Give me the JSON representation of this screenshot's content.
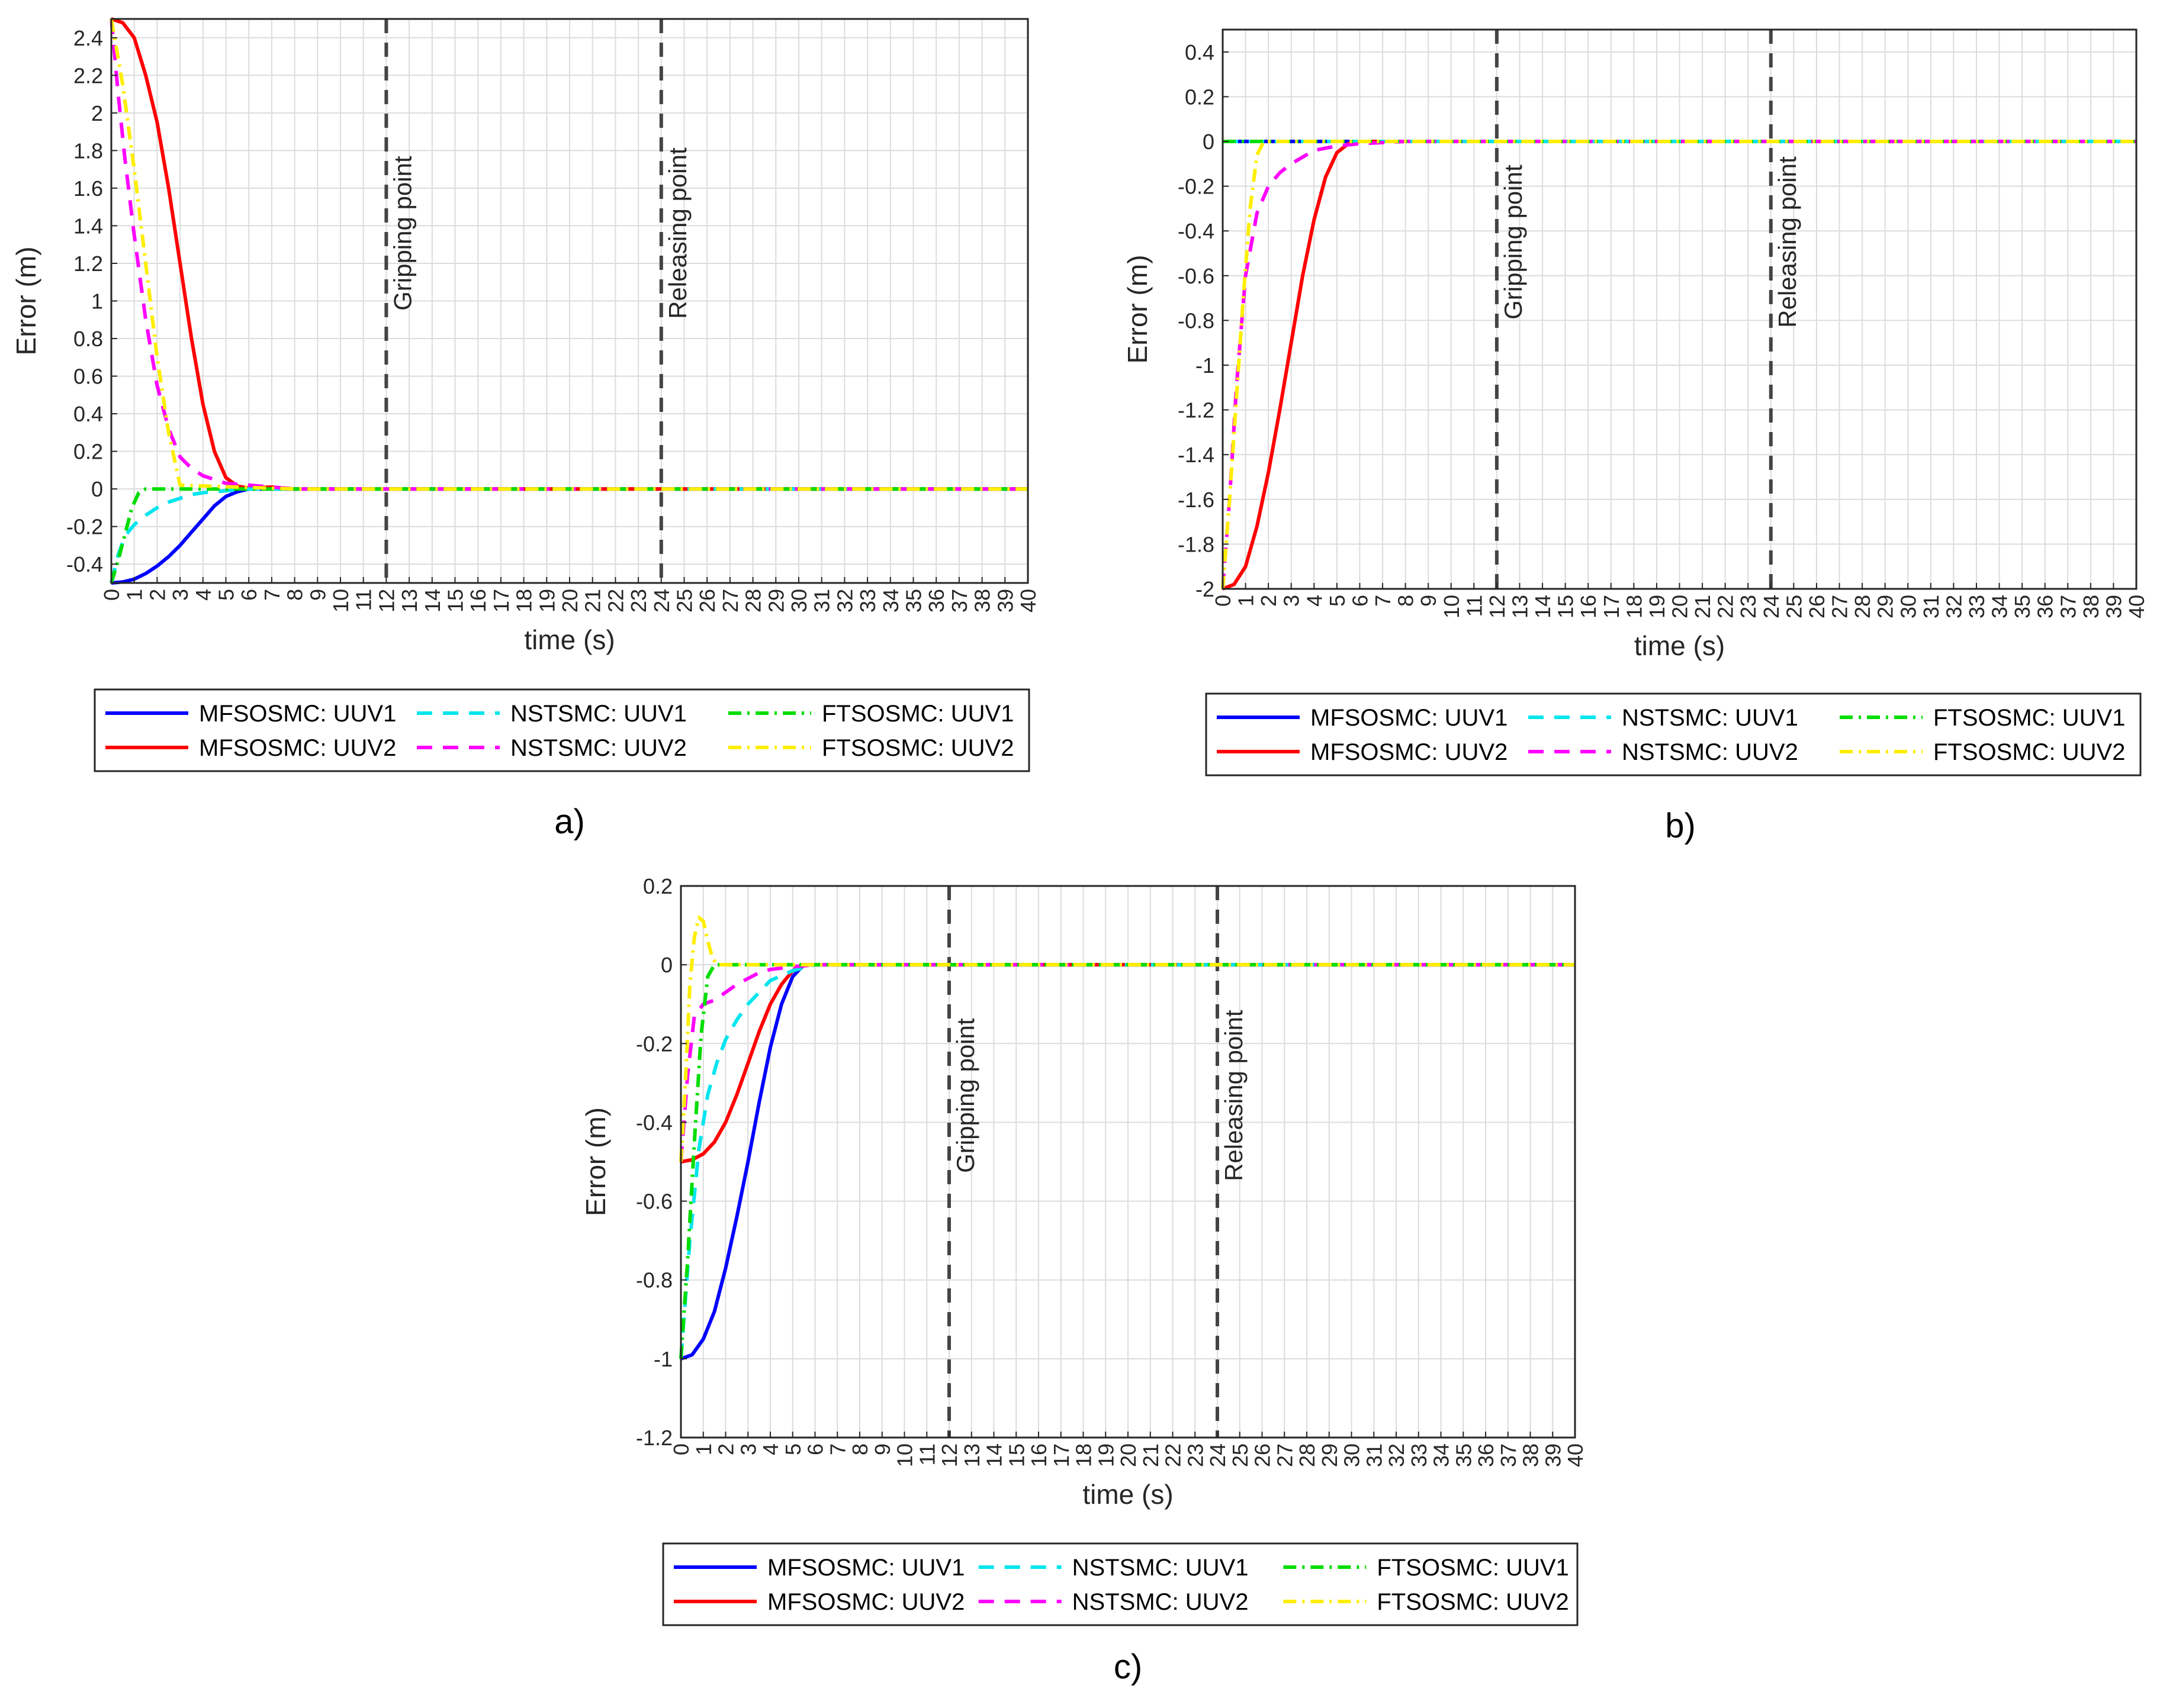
{
  "colors": {
    "mfso_uuv1": "#0000ff",
    "mfso_uuv2": "#ff0000",
    "nst_uuv1": "#00e5ee",
    "nst_uuv2": "#ff00ff",
    "ftso_uuv1": "#00dd00",
    "ftso_uuv2": "#ffee00",
    "grid": "#dcdcdc",
    "event_line": "#444444"
  },
  "chart_data": [
    {
      "panel": "a)",
      "type": "line",
      "xlabel": "time (s)",
      "ylabel": "Error (m)",
      "xlim": [
        0,
        40
      ],
      "ylim": [
        -0.5,
        2.5
      ],
      "x_ticks": [
        0,
        1,
        2,
        3,
        4,
        5,
        6,
        7,
        8,
        9,
        10,
        11,
        12,
        13,
        14,
        15,
        16,
        17,
        18,
        19,
        20,
        21,
        22,
        23,
        24,
        25,
        26,
        27,
        28,
        29,
        30,
        31,
        32,
        33,
        34,
        35,
        36,
        37,
        38,
        39,
        40
      ],
      "y_ticks": [
        -0.4,
        -0.2,
        0,
        0.2,
        0.4,
        0.6,
        0.8,
        1,
        1.2,
        1.4,
        1.6,
        1.8,
        2,
        2.2,
        2.4
      ],
      "y_tick_labels": [
        "-0.4",
        "-0.2",
        "0",
        "0.2",
        "0.4",
        "0.6",
        "0.8",
        "1",
        "1.2",
        "1.4",
        "1.6",
        "1.8",
        "2",
        "2.2",
        "2.4"
      ],
      "events": [
        {
          "x": 12,
          "label": "Gripping point"
        },
        {
          "x": 24,
          "label": "Releasing point"
        }
      ],
      "series": [
        {
          "name": "MFSOSMC: UUV1",
          "style": "solid",
          "color_key": "mfso_uuv1",
          "x": [
            0,
            0.5,
            1,
            1.5,
            2,
            2.5,
            3,
            3.5,
            4,
            4.5,
            5,
            5.5,
            6,
            7,
            8,
            40
          ],
          "y": [
            -0.5,
            -0.495,
            -0.48,
            -0.45,
            -0.41,
            -0.36,
            -0.3,
            -0.23,
            -0.16,
            -0.09,
            -0.04,
            -0.015,
            0,
            0,
            0,
            0
          ]
        },
        {
          "name": "MFSOSMC: UUV2",
          "style": "solid",
          "color_key": "mfso_uuv2",
          "x": [
            0,
            0.5,
            1,
            1.5,
            2,
            2.5,
            3,
            3.5,
            4,
            4.5,
            5,
            5.5,
            6,
            7,
            8,
            40
          ],
          "y": [
            2.5,
            2.48,
            2.4,
            2.2,
            1.95,
            1.6,
            1.2,
            0.8,
            0.45,
            0.2,
            0.06,
            0.015,
            0.005,
            0.01,
            0,
            0
          ]
        },
        {
          "name": "NSTSMC: UUV1",
          "style": "dashed",
          "color_key": "nst_uuv1",
          "x": [
            0,
            0.3,
            0.6,
            1,
            1.5,
            2,
            2.5,
            3,
            3.5,
            4,
            5,
            6,
            8,
            40
          ],
          "y": [
            -0.5,
            -0.35,
            -0.25,
            -0.19,
            -0.14,
            -0.1,
            -0.07,
            -0.05,
            -0.03,
            -0.02,
            -0.01,
            0,
            0,
            0
          ]
        },
        {
          "name": "NSTSMC: UUV2",
          "style": "dashed",
          "color_key": "nst_uuv2",
          "x": [
            0,
            0.3,
            0.6,
            1,
            1.5,
            2,
            2.5,
            3,
            3.5,
            4,
            5,
            6,
            8,
            40
          ],
          "y": [
            2.5,
            2.1,
            1.75,
            1.35,
            0.9,
            0.55,
            0.32,
            0.17,
            0.11,
            0.07,
            0.03,
            0.02,
            0,
            0
          ]
        },
        {
          "name": "FTSOSMC: UUV1",
          "style": "dashdot",
          "color_key": "ftso_uuv1",
          "x": [
            0,
            0.3,
            0.6,
            0.9,
            1.2,
            1.5,
            8,
            40
          ],
          "y": [
            -0.5,
            -0.38,
            -0.24,
            -0.1,
            -0.02,
            0,
            0,
            0
          ]
        },
        {
          "name": "FTSOSMC: UUV2",
          "style": "dashdot",
          "color_key": "ftso_uuv2",
          "x": [
            0,
            0.5,
            1,
            1.5,
            2,
            2.5,
            3,
            8,
            40
          ],
          "y": [
            2.5,
            2.15,
            1.7,
            1.2,
            0.7,
            0.3,
            0.02,
            0,
            0
          ]
        }
      ]
    },
    {
      "panel": "b)",
      "type": "line",
      "xlabel": "time (s)",
      "ylabel": "Error (m)",
      "xlim": [
        0,
        40
      ],
      "ylim": [
        -2,
        0.5
      ],
      "x_ticks": [
        0,
        1,
        2,
        3,
        4,
        5,
        6,
        7,
        8,
        9,
        10,
        11,
        12,
        13,
        14,
        15,
        16,
        17,
        18,
        19,
        20,
        21,
        22,
        23,
        24,
        25,
        26,
        27,
        28,
        29,
        30,
        31,
        32,
        33,
        34,
        35,
        36,
        37,
        38,
        39,
        40
      ],
      "y_ticks": [
        -2,
        -1.8,
        -1.6,
        -1.4,
        -1.2,
        -1,
        -0.8,
        -0.6,
        -0.4,
        -0.2,
        0,
        0.2,
        0.4
      ],
      "y_tick_labels": [
        "-2",
        "-1.8",
        "-1.6",
        "-1.4",
        "-1.2",
        "-1",
        "-0.8",
        "-0.6",
        "-0.4",
        "-0.2",
        "0",
        "0.2",
        "0.4"
      ],
      "events": [
        {
          "x": 12,
          "label": "Gripping point"
        },
        {
          "x": 24,
          "label": "Releasing point"
        }
      ],
      "series": [
        {
          "name": "MFSOSMC: UUV1",
          "style": "solid",
          "color_key": "mfso_uuv1",
          "x": [
            0,
            40
          ],
          "y": [
            0,
            0
          ]
        },
        {
          "name": "MFSOSMC: UUV2",
          "style": "solid",
          "color_key": "mfso_uuv2",
          "x": [
            0,
            0.5,
            1,
            1.5,
            2,
            2.5,
            3,
            3.5,
            4,
            4.5,
            5,
            5.5,
            6,
            8,
            40
          ],
          "y": [
            -2,
            -1.98,
            -1.9,
            -1.72,
            -1.48,
            -1.2,
            -0.9,
            -0.6,
            -0.35,
            -0.16,
            -0.05,
            -0.01,
            0,
            0,
            0
          ]
        },
        {
          "name": "NSTSMC: UUV1",
          "style": "dashed",
          "color_key": "nst_uuv1",
          "x": [
            0,
            40
          ],
          "y": [
            0,
            0
          ]
        },
        {
          "name": "NSTSMC: UUV2",
          "style": "dashed",
          "color_key": "nst_uuv2",
          "x": [
            0,
            0.3,
            0.6,
            1,
            1.5,
            2,
            2.5,
            3,
            3.5,
            4,
            5,
            6,
            8,
            40
          ],
          "y": [
            -2,
            -1.6,
            -1.1,
            -0.6,
            -0.32,
            -0.2,
            -0.14,
            -0.1,
            -0.07,
            -0.04,
            -0.02,
            -0.01,
            0,
            0
          ]
        },
        {
          "name": "FTSOSMC: UUV1",
          "style": "dashdot",
          "color_key": "ftso_uuv1",
          "x": [
            0,
            40
          ],
          "y": [
            0,
            0
          ]
        },
        {
          "name": "FTSOSMC: UUV2",
          "style": "dashdot",
          "color_key": "ftso_uuv2",
          "x": [
            0,
            0.3,
            0.6,
            0.9,
            1.2,
            1.5,
            1.8,
            8,
            40
          ],
          "y": [
            -2,
            -1.6,
            -1.15,
            -0.7,
            -0.3,
            -0.06,
            0,
            0,
            0
          ]
        }
      ]
    },
    {
      "panel": "c)",
      "type": "line",
      "xlabel": "time (s)",
      "ylabel": "Error (m)",
      "xlim": [
        0,
        40
      ],
      "ylim": [
        -1.2,
        0.2
      ],
      "x_ticks": [
        0,
        1,
        2,
        3,
        4,
        5,
        6,
        7,
        8,
        9,
        10,
        11,
        12,
        13,
        14,
        15,
        16,
        17,
        18,
        19,
        20,
        21,
        22,
        23,
        24,
        25,
        26,
        27,
        28,
        29,
        30,
        31,
        32,
        33,
        34,
        35,
        36,
        37,
        38,
        39,
        40
      ],
      "y_ticks": [
        -1.2,
        -1,
        -0.8,
        -0.6,
        -0.4,
        -0.2,
        0,
        0.2
      ],
      "y_tick_labels": [
        "-1.2",
        "-1",
        "-0.8",
        "-0.6",
        "-0.4",
        "-0.2",
        "0",
        "0.2"
      ],
      "events": [
        {
          "x": 12,
          "label": "Gripping point"
        },
        {
          "x": 24,
          "label": "Releasing point"
        }
      ],
      "series": [
        {
          "name": "MFSOSMC: UUV1",
          "style": "solid",
          "color_key": "mfso_uuv1",
          "x": [
            0,
            0.5,
            1,
            1.5,
            2,
            2.5,
            3,
            3.5,
            4,
            4.5,
            5,
            5.5,
            6,
            8,
            40
          ],
          "y": [
            -1,
            -0.99,
            -0.95,
            -0.88,
            -0.77,
            -0.64,
            -0.5,
            -0.35,
            -0.21,
            -0.1,
            -0.03,
            0,
            0,
            0,
            0
          ]
        },
        {
          "name": "MFSOSMC: UUV2",
          "style": "solid",
          "color_key": "mfso_uuv2",
          "x": [
            0,
            0.5,
            1,
            1.5,
            2,
            2.5,
            3,
            3.5,
            4,
            4.5,
            5,
            5.5,
            6,
            8,
            40
          ],
          "y": [
            -0.5,
            -0.495,
            -0.48,
            -0.45,
            -0.4,
            -0.33,
            -0.25,
            -0.17,
            -0.1,
            -0.05,
            -0.015,
            0,
            0,
            0,
            0
          ]
        },
        {
          "name": "NSTSMC: UUV1",
          "style": "dashed",
          "color_key": "nst_uuv1",
          "x": [
            0,
            0.4,
            0.8,
            1.2,
            1.6,
            2,
            2.5,
            3,
            3.5,
            4,
            5,
            6,
            8,
            40
          ],
          "y": [
            -1,
            -0.7,
            -0.47,
            -0.33,
            -0.25,
            -0.19,
            -0.14,
            -0.1,
            -0.07,
            -0.04,
            -0.015,
            0,
            0,
            0
          ]
        },
        {
          "name": "NSTSMC: UUV2",
          "style": "dashed",
          "color_key": "nst_uuv2",
          "x": [
            0,
            0.3,
            0.6,
            1,
            1.5,
            2,
            2.5,
            3,
            3.5,
            4,
            5,
            6,
            8,
            40
          ],
          "y": [
            -0.5,
            -0.28,
            -0.13,
            -0.1,
            -0.09,
            -0.07,
            -0.05,
            -0.035,
            -0.02,
            -0.012,
            -0.005,
            0,
            0,
            0
          ]
        },
        {
          "name": "FTSOSMC: UUV1",
          "style": "dashdot",
          "color_key": "ftso_uuv1",
          "x": [
            0,
            0.3,
            0.6,
            0.9,
            1.2,
            1.5,
            8,
            40
          ],
          "y": [
            -1,
            -0.75,
            -0.45,
            -0.18,
            -0.03,
            0,
            0,
            0
          ]
        },
        {
          "name": "FTSOSMC: UUV2",
          "style": "dashdot",
          "color_key": "ftso_uuv2",
          "x": [
            0,
            0.2,
            0.4,
            0.6,
            0.8,
            1,
            1.2,
            1.4,
            1.6,
            2,
            8,
            40
          ],
          "y": [
            -0.5,
            -0.3,
            -0.05,
            0.07,
            0.12,
            0.11,
            0.06,
            0.02,
            0,
            0,
            0,
            0
          ]
        }
      ]
    }
  ]
}
